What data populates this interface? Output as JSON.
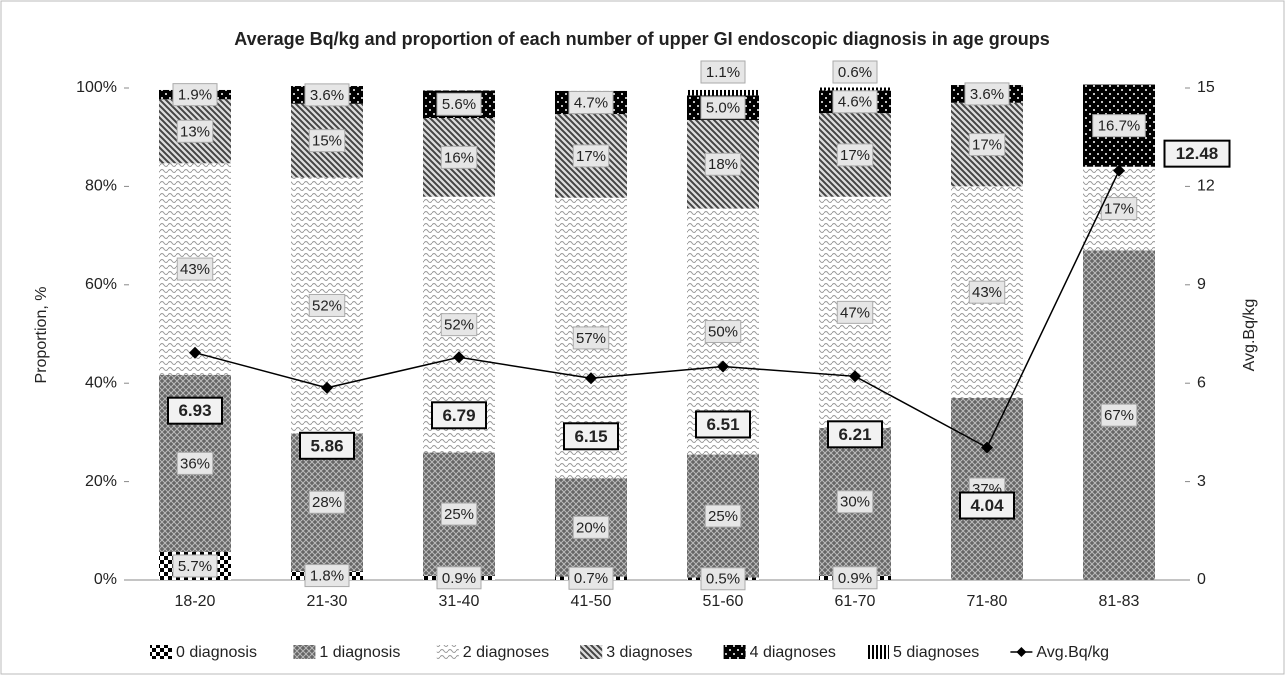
{
  "chart_data": {
    "type": "bar",
    "stacked": true,
    "title": "Average Bq/kg and proportion of each number of upper GI endoscopic diagnosis in age groups",
    "y_label": "Proportion, %",
    "y2_label": "Avg.Bq/kg",
    "categories": [
      "18-20",
      "21-30",
      "31-40",
      "41-50",
      "51-60",
      "61-70",
      "71-80",
      "81-83"
    ],
    "ylim": [
      0,
      100
    ],
    "yticks": [
      {
        "value": 0,
        "label": "0%"
      },
      {
        "value": 20,
        "label": "20%"
      },
      {
        "value": 40,
        "label": "40%"
      },
      {
        "value": 60,
        "label": "60%"
      },
      {
        "value": 80,
        "label": "80%"
      },
      {
        "value": 100,
        "label": "100%"
      }
    ],
    "y2lim": [
      0,
      15
    ],
    "y2ticks": [
      0,
      3,
      6,
      9,
      12,
      15
    ],
    "legend": "bottom",
    "series": [
      {
        "name": "0 diagnosis",
        "color": "#000000",
        "pattern": "checker",
        "values": [
          5.7,
          1.8,
          0.9,
          0.7,
          0.5,
          0.9,
          null,
          null
        ],
        "value_labels": [
          "5.7%",
          "1.8%",
          "0.9%",
          "0.7%",
          "0.5%",
          "0.9%",
          null,
          null
        ]
      },
      {
        "name": "1 diagnosis",
        "color": "#666666",
        "pattern": "crosshatch",
        "values": [
          36,
          28,
          25,
          20,
          25,
          30,
          37,
          67
        ],
        "value_labels": [
          "36%",
          "28%",
          "25%",
          "20%",
          "25%",
          "30%",
          "37%",
          "67%"
        ]
      },
      {
        "name": "2 diagnoses",
        "color": "#999999",
        "pattern": "wave",
        "values": [
          43,
          52,
          52,
          57,
          50,
          47,
          43,
          17
        ],
        "value_labels": [
          "43%",
          "52%",
          "52%",
          "57%",
          "50%",
          "47%",
          "43%",
          "17%"
        ]
      },
      {
        "name": "3 diagnoses",
        "color": "#444444",
        "pattern": "diagonal",
        "values": [
          13,
          15,
          16,
          17,
          18,
          17,
          17,
          null
        ],
        "value_labels": [
          "13%",
          "15%",
          "16%",
          "17%",
          "18%",
          "17%",
          "17%",
          null
        ]
      },
      {
        "name": "4 diagnoses",
        "color": "#000000",
        "pattern": "dots",
        "values": [
          1.9,
          3.6,
          5.6,
          4.7,
          5.0,
          4.6,
          3.6,
          16.7
        ],
        "value_labels": [
          "1.9%",
          "3.6%",
          "5.6%",
          "4.7%",
          "5.0%",
          "4.6%",
          "3.6%",
          "16.7%"
        ]
      },
      {
        "name": "5 diagnoses",
        "color": "#000000",
        "pattern": "vertical",
        "values": [
          null,
          null,
          null,
          null,
          1.1,
          0.6,
          null,
          null
        ],
        "value_labels": [
          null,
          null,
          null,
          null,
          "1.1%",
          "0.6%",
          null,
          null
        ]
      },
      {
        "name": "Avg.Bq/kg",
        "type": "line",
        "axis": "y2",
        "color": "#000000",
        "values": [
          6.93,
          5.86,
          6.79,
          6.15,
          6.51,
          6.21,
          4.04,
          12.48
        ]
      }
    ]
  }
}
